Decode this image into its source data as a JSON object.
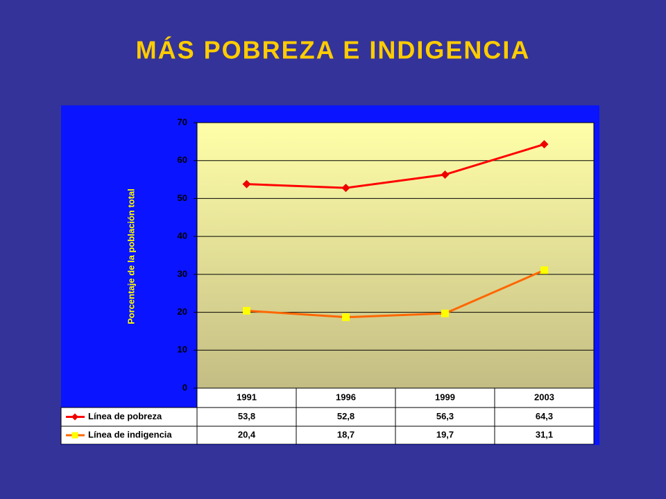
{
  "chart_data": {
    "type": "line",
    "title": "MÁS POBREZA E INDIGENCIA",
    "y_label": "Porcentaje de la población total",
    "categories": [
      "1991",
      "1996",
      "1999",
      "2003"
    ],
    "series": [
      {
        "name": "Línea de pobreza",
        "color": "#ff0000",
        "marker": "diamond",
        "marker_color": "#ee0000",
        "values": [
          53.8,
          52.8,
          56.3,
          64.3
        ],
        "value_labels": [
          "53,8",
          "52,8",
          "56,3",
          "64,3"
        ]
      },
      {
        "name": "Línea de indigencia",
        "color": "#ff6600",
        "marker": "square",
        "marker_color": "#ffff00",
        "values": [
          20.4,
          18.7,
          19.7,
          31.1
        ],
        "value_labels": [
          "20,4",
          "18,7",
          "19,7",
          "31,1"
        ]
      }
    ],
    "ylim": [
      0,
      70
    ],
    "yticks": [
      0,
      10,
      20,
      30,
      40,
      50,
      60,
      70
    ],
    "grid": true,
    "data_table": true
  }
}
